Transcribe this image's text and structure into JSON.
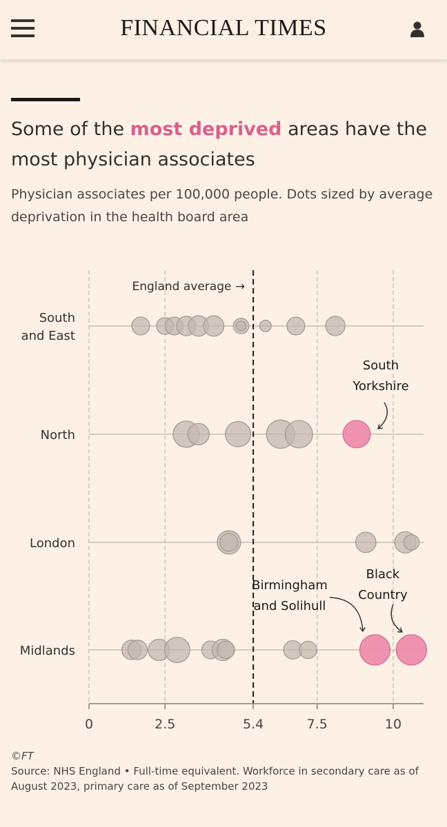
{
  "header": {
    "brand": "FINANCIAL TIMES",
    "menu_icon": "hamburger-menu-icon",
    "user_icon": "user-account-icon"
  },
  "article": {
    "headline_pre": "Some of the ",
    "headline_highlight": "most deprived",
    "headline_post": " areas have the most physician associates",
    "subtitle": "Physician associates per 100,000 people. Dots sized by average deprivation in the health board area"
  },
  "colors": {
    "background": "#fdf1e6",
    "highlight": "#d8628c",
    "dot_grey": "#c2b8b0",
    "dot_pink": "#ee8cac"
  },
  "chart_data": {
    "type": "scatter",
    "title": "Some of the most deprived areas have the most physician associates",
    "subtitle": "Physician associates per 100,000 people. Dots sized by average deprivation in the health board area",
    "xlim": [
      0,
      11
    ],
    "x_ticks": [
      0,
      2.5,
      5.4,
      7.5,
      10
    ],
    "x_tick_labels": [
      "0",
      "2.5",
      "5.4",
      "7.5",
      "10"
    ],
    "reference_line": {
      "x": 5.4,
      "label": "England average →"
    },
    "categories": [
      {
        "lines": [
          "South",
          "and East"
        ]
      },
      {
        "lines": [
          "North"
        ]
      },
      {
        "lines": [
          "London"
        ]
      },
      {
        "lines": [
          "Midlands"
        ]
      }
    ],
    "size_meaning": "average deprivation (relative)",
    "points": [
      {
        "row": 0,
        "x": 1.7,
        "size": 2.5
      },
      {
        "row": 0,
        "x": 2.5,
        "size": 2.3
      },
      {
        "row": 0,
        "x": 2.8,
        "size": 2.5
      },
      {
        "row": 0,
        "x": 3.2,
        "size": 2.8
      },
      {
        "row": 0,
        "x": 3.6,
        "size": 3.0
      },
      {
        "row": 0,
        "x": 4.1,
        "size": 3.0
      },
      {
        "row": 0,
        "x": 5.0,
        "size": 2.0
      },
      {
        "row": 0,
        "x": 5.0,
        "size": 0.8
      },
      {
        "row": 0,
        "x": 5.8,
        "size": 1.2
      },
      {
        "row": 0,
        "x": 6.8,
        "size": 2.5
      },
      {
        "row": 0,
        "x": 8.1,
        "size": 2.8
      },
      {
        "row": 1,
        "x": 3.2,
        "size": 4.2
      },
      {
        "row": 1,
        "x": 3.6,
        "size": 3.2
      },
      {
        "row": 1,
        "x": 4.9,
        "size": 4.0
      },
      {
        "row": 1,
        "x": 6.3,
        "size": 4.6
      },
      {
        "row": 1,
        "x": 6.9,
        "size": 4.4
      },
      {
        "row": 1,
        "x": 8.8,
        "size": 4.4,
        "highlight": true,
        "name": "South Yorkshire"
      },
      {
        "row": 2,
        "x": 4.6,
        "size": 3.6
      },
      {
        "row": 2,
        "x": 4.6,
        "size": 2.5
      },
      {
        "row": 2,
        "x": 9.1,
        "size": 3.0
      },
      {
        "row": 2,
        "x": 10.4,
        "size": 3.2
      },
      {
        "row": 2,
        "x": 10.6,
        "size": 2.0
      },
      {
        "row": 3,
        "x": 1.4,
        "size": 2.8
      },
      {
        "row": 3,
        "x": 1.6,
        "size": 2.8
      },
      {
        "row": 3,
        "x": 2.3,
        "size": 3.2
      },
      {
        "row": 3,
        "x": 2.9,
        "size": 4.0
      },
      {
        "row": 3,
        "x": 4.0,
        "size": 2.5
      },
      {
        "row": 3,
        "x": 4.4,
        "size": 3.2
      },
      {
        "row": 3,
        "x": 4.5,
        "size": 2.4
      },
      {
        "row": 3,
        "x": 6.7,
        "size": 2.6
      },
      {
        "row": 3,
        "x": 7.2,
        "size": 2.4
      },
      {
        "row": 3,
        "x": 9.4,
        "size": 5.0,
        "highlight": true,
        "name": "Birmingham and Solihull"
      },
      {
        "row": 3,
        "x": 10.6,
        "size": 5.0,
        "highlight": true,
        "name": "Black Country"
      }
    ],
    "annotations": [
      {
        "lines": [
          "South",
          "Yorkshire"
        ],
        "target_row": 1,
        "target_x": 8.8
      },
      {
        "lines": [
          "Birmingham",
          "and Solihull"
        ],
        "target_row": 3,
        "target_x": 9.4
      },
      {
        "lines": [
          "Black",
          "Country"
        ],
        "target_row": 3,
        "target_x": 10.6
      }
    ]
  },
  "footer": {
    "copyright": "©FT",
    "source": "Source: NHS England • Full-time equivalent. Workforce in secondary care as of August 2023, primary care as of September 2023"
  }
}
